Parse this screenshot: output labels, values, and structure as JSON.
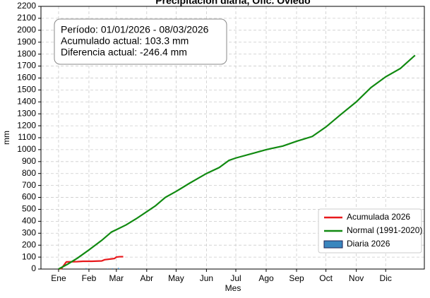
{
  "chart_data": {
    "type": "line",
    "title": "Precipitación diaria, Ofic. Oviedo",
    "xlabel": "Mes",
    "ylabel": "mm",
    "annotation": [
      "Período: 01/01/2026 - 08/03/2026",
      "Acumulado actual: 103.3 mm",
      "Diferencia actual: -246.4 mm"
    ],
    "xlim": [
      -17,
      374.5
    ],
    "xticks": [
      {
        "value": 1,
        "label": "Ene"
      },
      {
        "value": 32,
        "label": "Feb"
      },
      {
        "value": 60,
        "label": "Mar"
      },
      {
        "value": 91,
        "label": "Abr"
      },
      {
        "value": 121,
        "label": "May"
      },
      {
        "value": 152,
        "label": "Jun"
      },
      {
        "value": 182,
        "label": "Jul"
      },
      {
        "value": 213,
        "label": "Ago"
      },
      {
        "value": 244,
        "label": "Sep"
      },
      {
        "value": 274,
        "label": "Oct"
      },
      {
        "value": 305,
        "label": "Nov"
      },
      {
        "value": 335,
        "label": "Dic"
      }
    ],
    "ylim": [
      0,
      2200
    ],
    "yticks": [
      0,
      100,
      200,
      300,
      400,
      500,
      600,
      700,
      800,
      900,
      1000,
      1100,
      1200,
      1300,
      1400,
      1500,
      1600,
      1700,
      1800,
      1900,
      2000,
      2100,
      2200
    ],
    "grid": true,
    "legend": "lower right",
    "series": [
      {
        "name": "Acumulada 2026",
        "type": "line",
        "color": "#e8191c",
        "x": [
          1,
          4,
          8,
          9,
          20,
          26,
          35,
          45,
          48,
          55,
          58,
          60,
          63,
          67
        ],
        "values": [
          0,
          5,
          50,
          60,
          62,
          65,
          65,
          68,
          78,
          85,
          88,
          100,
          103,
          103.3
        ]
      },
      {
        "name": "Normal (1991-2020)",
        "type": "line",
        "color": "#118a11",
        "x": [
          1,
          10,
          20,
          32,
          45,
          55,
          60,
          70,
          80,
          91,
          100,
          110,
          121,
          135,
          152,
          165,
          175,
          182,
          200,
          213,
          230,
          244,
          260,
          274,
          290,
          305,
          320,
          335,
          350,
          365
        ],
        "values": [
          0,
          40,
          90,
          160,
          240,
          310,
          330,
          370,
          420,
          480,
          530,
          600,
          650,
          720,
          800,
          850,
          910,
          930,
          970,
          1000,
          1030,
          1070,
          1110,
          1190,
          1300,
          1400,
          1520,
          1610,
          1680,
          1790
        ]
      },
      {
        "name": "Diaria 2026",
        "type": "bar",
        "color": "#3a86be",
        "x": [
          29,
          51,
          56,
          62,
          63
        ],
        "values": [
          8,
          5,
          6,
          10,
          4
        ]
      }
    ]
  }
}
